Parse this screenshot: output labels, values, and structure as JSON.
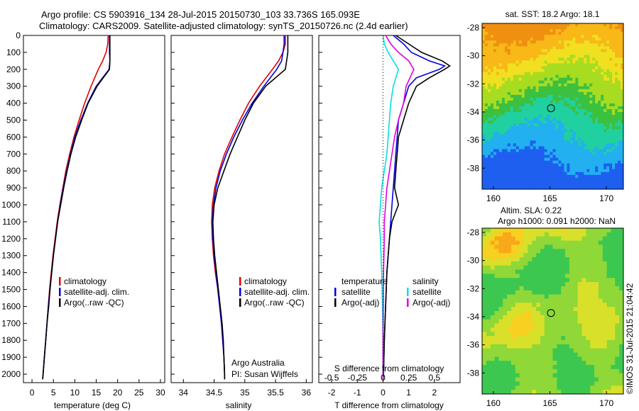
{
  "header": {
    "line1": "Argo profile: CS 5903916_134 28-Jul-2015 20150730_103 33.736S 165.093E",
    "line2": "Climatology: CARS2009. Satellite-adjusted climatology: synTS_20150726.nc (2.4d earlier)"
  },
  "colors": {
    "climatology": "#e00000",
    "satellite": "#0000e0",
    "argo": "#000000",
    "salinity_satellite": "#00e0e0",
    "salinity_argo": "#e000e0"
  },
  "chart_data": [
    {
      "type": "line",
      "name": "temperature-panel",
      "xlabel": "temperature (deg C)",
      "ylabel": "",
      "xlim": [
        -2,
        31
      ],
      "ylim": [
        2050,
        0
      ],
      "xticks": [
        0,
        5,
        10,
        15,
        20,
        25,
        30
      ],
      "yticks": [
        0,
        100,
        200,
        300,
        400,
        500,
        600,
        700,
        800,
        900,
        1000,
        1100,
        1200,
        1300,
        1400,
        1500,
        1600,
        1700,
        1800,
        1900,
        2000
      ],
      "grid": false,
      "legend_position": "lower-middle",
      "legend": [
        "climatology",
        "satellite-adj. clim.",
        "Argo(..raw -QC)"
      ],
      "series": [
        {
          "name": "climatology",
          "color": "#e00000",
          "depth": [
            0,
            50,
            100,
            150,
            200,
            300,
            400,
            500,
            600,
            700,
            800,
            900,
            1000,
            1100,
            1200,
            1300,
            1400,
            1500,
            1600,
            1700,
            1800,
            1900,
            2000,
            2030
          ],
          "values": [
            17.8,
            17.7,
            17.3,
            16.5,
            15.5,
            13.8,
            12.3,
            11.0,
            9.8,
            8.8,
            7.9,
            7.2,
            6.5,
            5.9,
            5.4,
            4.9,
            4.5,
            4.1,
            3.8,
            3.5,
            3.2,
            2.9,
            2.6,
            2.5
          ]
        },
        {
          "name": "satellite-adj. clim.",
          "color": "#0000e0",
          "depth": [
            0,
            50,
            100,
            150,
            200,
            300,
            400,
            500,
            600,
            700,
            800,
            900,
            1000,
            1100,
            1200,
            1300,
            1400,
            1500,
            1600,
            1700,
            1800,
            1900,
            2000,
            2030
          ],
          "values": [
            18.1,
            18.1,
            18.1,
            18.2,
            18.0,
            15.0,
            13.0,
            11.4,
            10.0,
            9.0,
            8.1,
            7.3,
            6.6,
            6.0,
            5.5,
            5.0,
            4.6,
            4.2,
            3.8,
            3.5,
            3.2,
            2.9,
            2.6,
            2.5
          ]
        },
        {
          "name": "Argo(..raw -QC)",
          "color": "#000000",
          "depth": [
            0,
            50,
            100,
            150,
            200,
            300,
            400,
            500,
            600,
            700,
            800,
            900,
            1000,
            1100,
            1200,
            1300,
            1400,
            1500,
            1600,
            1700,
            1800,
            1900,
            2000,
            2030
          ],
          "values": [
            18.2,
            18.2,
            18.2,
            18.2,
            18.1,
            15.2,
            13.1,
            11.6,
            10.2,
            9.1,
            8.2,
            7.4,
            6.7,
            6.0,
            5.5,
            5.0,
            4.6,
            4.2,
            3.9,
            3.5,
            3.2,
            2.9,
            2.6,
            2.5
          ]
        }
      ]
    },
    {
      "type": "line",
      "name": "salinity-panel",
      "xlabel": "salinity",
      "xlim": [
        33.8,
        36.1
      ],
      "ylim": [
        2050,
        0
      ],
      "xticks": [
        34,
        34.5,
        35,
        35.5,
        36
      ],
      "xticklabels": [
        "34",
        "34.5",
        "35",
        "35.5",
        "36"
      ],
      "legend_position": "lower-middle",
      "legend": [
        "climatology",
        "satellite-adj. clim.",
        "Argo(..raw -QC)"
      ],
      "annotations": [
        "Argo Australia",
        "PI: Susan Wijffels"
      ],
      "series": [
        {
          "name": "climatology",
          "color": "#e00000",
          "depth": [
            0,
            50,
            100,
            150,
            200,
            300,
            400,
            500,
            600,
            700,
            800,
            900,
            1000,
            1100,
            1200,
            1300,
            1400,
            1500,
            1600,
            1700,
            1800,
            1900,
            2000,
            2030
          ],
          "values": [
            35.66,
            35.66,
            35.62,
            35.55,
            35.45,
            35.24,
            35.06,
            34.92,
            34.79,
            34.67,
            34.58,
            34.51,
            34.47,
            34.46,
            34.47,
            34.49,
            34.52,
            34.56,
            34.59,
            34.62,
            34.64,
            34.66,
            34.67,
            34.67
          ]
        },
        {
          "name": "satellite-adj. clim.",
          "color": "#0000e0",
          "depth": [
            0,
            50,
            100,
            150,
            200,
            300,
            400,
            500,
            600,
            700,
            800,
            900,
            1000,
            1100,
            1200,
            1300,
            1400,
            1500,
            1600,
            1700,
            1800,
            1900,
            2000,
            2030
          ],
          "values": [
            35.64,
            35.64,
            35.62,
            35.6,
            35.52,
            35.31,
            35.12,
            34.96,
            34.82,
            34.7,
            34.6,
            34.53,
            34.49,
            34.47,
            34.48,
            34.5,
            34.53,
            34.56,
            34.59,
            34.62,
            34.64,
            34.66,
            34.67,
            34.67
          ]
        },
        {
          "name": "Argo(..raw -QC)",
          "color": "#000000",
          "depth": [
            0,
            50,
            100,
            150,
            200,
            300,
            400,
            500,
            600,
            700,
            800,
            900,
            1000,
            1100,
            1200,
            1300,
            1400,
            1500,
            1600,
            1700,
            1800,
            1900,
            2000,
            2030
          ],
          "values": [
            35.7,
            35.7,
            35.7,
            35.68,
            35.66,
            35.34,
            35.14,
            35.0,
            34.88,
            34.76,
            34.66,
            34.56,
            34.5,
            34.48,
            34.49,
            34.51,
            34.54,
            34.57,
            34.6,
            34.63,
            34.65,
            34.66,
            34.67,
            34.67
          ]
        }
      ]
    },
    {
      "type": "line",
      "name": "difference-panel",
      "xlabel": "T difference from climatology",
      "top_axis_label": "S difference from climatology",
      "xlim": [
        -2.5,
        3.0
      ],
      "xticks": [
        -2,
        -1,
        0,
        1,
        2
      ],
      "top_xticklabels": [
        "-0.5",
        "-0.25",
        "0",
        "0.25",
        "0.5"
      ],
      "top_xticks_at_T": [
        -2,
        -1,
        0,
        1,
        2
      ],
      "ylim": [
        2050,
        0
      ],
      "legend_position": "lower-middle",
      "legend_temperature_title": "temperature",
      "legend_salinity_title": "salinity",
      "legend": [
        "satellite",
        "Argo(-adj)",
        "satellite",
        "Argo(-adj)"
      ],
      "series": [
        {
          "name": "temperature satellite",
          "color": "#0000e0",
          "depth": [
            0,
            50,
            100,
            150,
            180,
            200,
            250,
            300,
            400,
            500,
            600,
            700,
            800,
            900,
            1000,
            1100,
            1200,
            1400,
            1600,
            1800,
            2000,
            2030
          ],
          "values": [
            0.4,
            0.8,
            1.1,
            1.8,
            2.4,
            2.2,
            1.3,
            1.0,
            0.8,
            0.6,
            0.55,
            0.5,
            0.45,
            0.4,
            0.35,
            0.3,
            0.25,
            0.15,
            0.1,
            0.05,
            0.02,
            0.0
          ]
        },
        {
          "name": "temperature Argo(-adj)",
          "color": "#000000",
          "depth": [
            0,
            50,
            100,
            150,
            180,
            200,
            250,
            300,
            400,
            500,
            600,
            700,
            800,
            900,
            1000,
            1100,
            1200,
            1400,
            1600,
            1800,
            2000,
            2030
          ],
          "values": [
            0.5,
            1.0,
            1.5,
            2.3,
            2.6,
            2.4,
            1.8,
            1.3,
            1.0,
            0.8,
            0.6,
            0.55,
            0.5,
            0.45,
            0.6,
            0.35,
            0.25,
            0.15,
            0.1,
            0.05,
            0.02,
            0.0
          ]
        },
        {
          "name": "salinity satellite",
          "color": "#00e0e0",
          "depth": [
            0,
            50,
            100,
            150,
            200,
            300,
            400,
            500,
            600,
            700,
            800,
            900,
            1000,
            1100,
            1200,
            1400,
            1600,
            1800,
            2000,
            2030
          ],
          "values": [
            0.0,
            0.05,
            0.2,
            0.4,
            0.6,
            0.4,
            0.3,
            0.25,
            0.2,
            0.15,
            0.05,
            -0.05,
            -0.1,
            -0.15,
            -0.1,
            -0.05,
            -0.02,
            0.0,
            0.0,
            0.0
          ]
        },
        {
          "name": "salinity Argo(-adj)",
          "color": "#e000e0",
          "depth": [
            0,
            50,
            100,
            150,
            200,
            300,
            400,
            500,
            600,
            700,
            800,
            900,
            1000,
            1100,
            1200,
            1400,
            1600,
            1800,
            2000,
            2030
          ],
          "values": [
            0.1,
            0.3,
            0.6,
            1.0,
            1.2,
            0.9,
            0.8,
            0.6,
            0.45,
            0.35,
            0.25,
            0.15,
            0.1,
            0.05,
            0.05,
            0.02,
            0.01,
            0.0,
            0.0,
            0.0
          ]
        }
      ]
    },
    {
      "type": "heatmap",
      "name": "sst-map",
      "title": "sat. SST: 18.2 Argo: 18.1",
      "xlim": [
        159,
        171.5
      ],
      "ylim": [
        -39.5,
        -27.7
      ],
      "xticks": [
        160,
        165,
        170
      ],
      "yticks": [
        -28,
        -30,
        -32,
        -34,
        -36,
        -38
      ],
      "marker": {
        "lon": 165.093,
        "lat": -33.736
      }
    },
    {
      "type": "heatmap",
      "name": "sla-map",
      "title_line1": "Altim. SLA: 0.22",
      "title_line2": "Argo h1000: 0.091 h2000: NaN",
      "xlim": [
        159,
        171.5
      ],
      "ylim": [
        -39.5,
        -27.7
      ],
      "xticks": [
        160,
        165,
        170
      ],
      "yticks": [
        -28,
        -30,
        -32,
        -34,
        -36,
        -38
      ],
      "marker": {
        "lon": 165.093,
        "lat": -33.736
      }
    }
  ],
  "footer": {
    "credit": "©IMOS 31-Jul-2015 21:04:42"
  }
}
